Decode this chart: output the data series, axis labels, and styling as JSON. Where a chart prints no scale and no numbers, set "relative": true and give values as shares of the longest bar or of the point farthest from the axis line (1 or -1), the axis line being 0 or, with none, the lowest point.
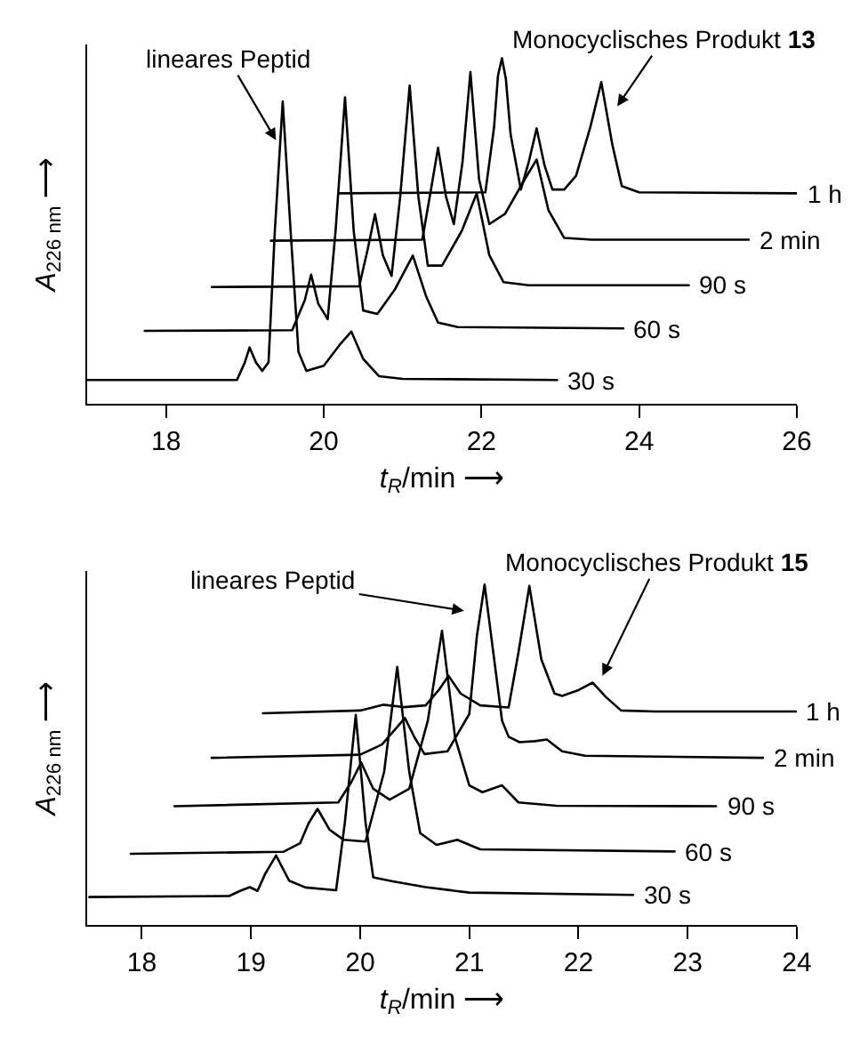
{
  "chart_data": [
    {
      "type": "line",
      "relative": true,
      "xlabel": "t$_{R}$/min ⟶",
      "ylabel": "A$_{226 nm}$ ⟶",
      "xlim": [
        17,
        26
      ],
      "xticks": [
        18,
        20,
        22,
        24,
        26
      ],
      "annotations": [
        "lineares Peptid",
        "Monocyclisches Produkt 13"
      ],
      "series": [
        {
          "name": "30 s",
          "color": "#000000",
          "x": [
            17.0,
            18.9,
            19.0,
            19.06,
            19.14,
            19.22,
            19.3,
            19.38,
            19.48,
            19.58,
            19.68,
            19.78,
            20.0,
            20.2,
            20.35,
            20.5,
            20.7,
            21.0,
            22.96
          ],
          "values": [
            0.069,
            0.069,
            0.12,
            0.163,
            0.12,
            0.095,
            0.12,
            0.5,
            0.875,
            0.5,
            0.15,
            0.095,
            0.11,
            0.17,
            0.209,
            0.13,
            0.08,
            0.072,
            0.069
          ]
        },
        {
          "name": "60 s",
          "color": "#000000",
          "x": [
            17.73,
            19.6,
            19.76,
            19.84,
            19.93,
            20.05,
            20.15,
            20.27,
            20.38,
            20.5,
            20.68,
            20.9,
            21.13,
            21.3,
            21.45,
            21.7,
            23.8
          ],
          "values": [
            0.211,
            0.213,
            0.3,
            0.374,
            0.29,
            0.245,
            0.5,
            0.887,
            0.5,
            0.27,
            0.26,
            0.33,
            0.429,
            0.31,
            0.235,
            0.222,
            0.218
          ]
        },
        {
          "name": "90 s",
          "color": "#000000",
          "x": [
            18.58,
            20.45,
            20.56,
            20.65,
            20.75,
            20.86,
            20.97,
            21.09,
            21.2,
            21.32,
            21.5,
            21.75,
            21.94,
            22.1,
            22.28,
            22.6,
            24.63
          ],
          "values": [
            0.338,
            0.34,
            0.45,
            0.549,
            0.43,
            0.37,
            0.6,
            0.921,
            0.6,
            0.4,
            0.4,
            0.5,
            0.609,
            0.43,
            0.352,
            0.343,
            0.343
          ]
        },
        {
          "name": "2 min",
          "color": "#000000",
          "x": [
            19.33,
            21.25,
            21.36,
            21.45,
            21.55,
            21.65,
            21.76,
            21.86,
            21.97,
            22.1,
            22.3,
            22.55,
            22.7,
            22.85,
            23.05,
            23.4,
            25.39
          ],
          "values": [
            0.472,
            0.475,
            0.62,
            0.741,
            0.6,
            0.52,
            0.7,
            0.96,
            0.65,
            0.52,
            0.55,
            0.65,
            0.707,
            0.56,
            0.48,
            0.475,
            0.475
          ]
        },
        {
          "name": "1 h",
          "color": "#000000",
          "x": [
            20.2,
            22.05,
            22.16,
            22.21,
            22.26,
            22.31,
            22.37,
            22.5,
            22.6,
            22.7,
            22.8,
            22.9,
            23.05,
            23.2,
            23.38,
            23.52,
            23.66,
            23.78,
            24.0,
            26.0
          ],
          "values": [
            0.609,
            0.612,
            0.8,
            0.95,
            1.0,
            0.94,
            0.78,
            0.62,
            0.7,
            0.797,
            0.69,
            0.62,
            0.62,
            0.66,
            0.8,
            0.931,
            0.75,
            0.63,
            0.612,
            0.609
          ]
        }
      ]
    },
    {
      "type": "line",
      "relative": true,
      "xlabel": "t$_{R}$/min ⟶",
      "ylabel": "A$_{226 nm}$ ⟶",
      "xlim": [
        17.5,
        24
      ],
      "xticks": [
        18,
        19,
        20,
        21,
        22,
        23,
        24
      ],
      "annotations": [
        "lineares Peptid",
        "Monocyclisches Produkt 15"
      ],
      "series": [
        {
          "name": "30 s",
          "color": "#000000",
          "x": [
            17.52,
            18.8,
            18.9,
            18.99,
            19.06,
            19.13,
            19.23,
            19.35,
            19.5,
            19.78,
            19.86,
            19.96,
            20.05,
            20.12,
            20.3,
            20.6,
            21.0,
            22.5
          ],
          "values": [
            0.082,
            0.085,
            0.1,
            0.111,
            0.1,
            0.15,
            0.204,
            0.13,
            0.11,
            0.102,
            0.3,
            0.617,
            0.3,
            0.14,
            0.128,
            0.111,
            0.095,
            0.088
          ]
        },
        {
          "name": "60 s",
          "color": "#000000",
          "x": [
            17.9,
            19.3,
            19.45,
            19.53,
            19.61,
            19.72,
            19.85,
            20.05,
            20.22,
            20.34,
            20.45,
            20.55,
            20.7,
            20.89,
            21.1,
            22.88
          ],
          "values": [
            0.209,
            0.215,
            0.24,
            0.3,
            0.341,
            0.28,
            0.25,
            0.245,
            0.45,
            0.758,
            0.45,
            0.27,
            0.235,
            0.25,
            0.222,
            0.216
          ]
        },
        {
          "name": "90 s",
          "color": "#000000",
          "x": [
            18.3,
            19.8,
            19.92,
            20.01,
            20.12,
            20.27,
            20.45,
            20.62,
            20.75,
            20.87,
            21.0,
            21.12,
            21.3,
            21.45,
            21.8,
            23.26
          ],
          "values": [
            0.349,
            0.36,
            0.42,
            0.477,
            0.4,
            0.368,
            0.4,
            0.6,
            0.864,
            0.55,
            0.41,
            0.39,
            0.41,
            0.36,
            0.35,
            0.349
          ]
        },
        {
          "name": "2 min",
          "color": "#000000",
          "x": [
            18.64,
            20.0,
            20.2,
            20.41,
            20.5,
            20.59,
            20.8,
            21.0,
            21.07,
            21.14,
            21.22,
            21.3,
            21.36,
            21.46,
            21.6,
            21.71,
            21.85,
            22.06,
            23.69
          ],
          "values": [
            0.491,
            0.5,
            0.53,
            0.608,
            0.55,
            0.502,
            0.51,
            0.62,
            0.85,
            1.0,
            0.8,
            0.6,
            0.553,
            0.537,
            0.54,
            0.545,
            0.51,
            0.497,
            0.491
          ]
        },
        {
          "name": "1 h",
          "color": "#000000",
          "x": [
            19.11,
            20.0,
            20.21,
            20.4,
            20.6,
            20.72,
            20.81,
            20.92,
            21.1,
            21.36,
            21.45,
            21.55,
            21.66,
            21.78,
            21.85,
            22.0,
            22.13,
            22.25,
            22.39,
            22.7,
            23.99
          ],
          "values": [
            0.622,
            0.63,
            0.647,
            0.64,
            0.645,
            0.69,
            0.732,
            0.68,
            0.645,
            0.639,
            0.8,
            0.996,
            0.78,
            0.68,
            0.673,
            0.69,
            0.712,
            0.67,
            0.63,
            0.627,
            0.627
          ]
        }
      ]
    }
  ]
}
